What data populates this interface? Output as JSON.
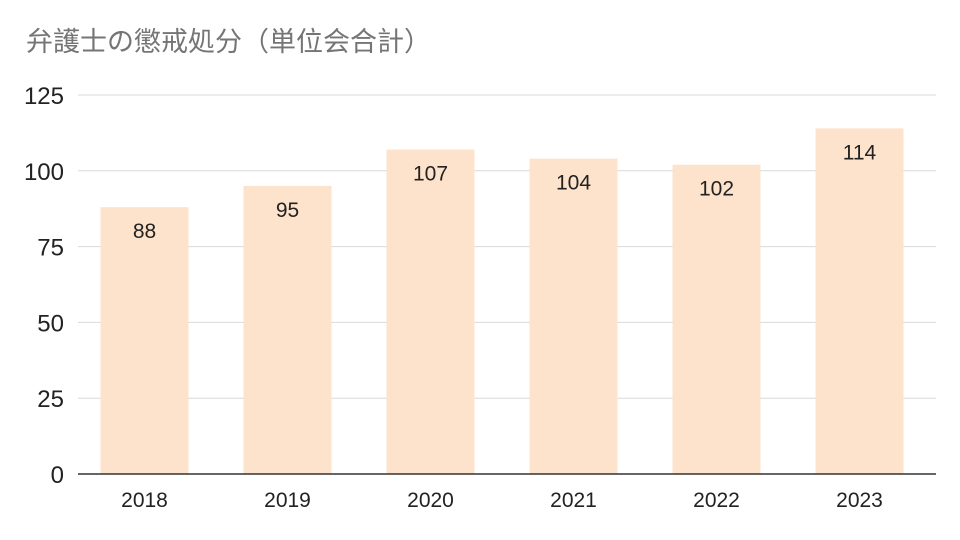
{
  "chart_data": {
    "type": "bar",
    "title": "弁護士の懲戒処分（単位会合計）",
    "categories": [
      "2018",
      "2019",
      "2020",
      "2021",
      "2022",
      "2023"
    ],
    "values": [
      88,
      95,
      107,
      104,
      102,
      114
    ],
    "ylim": [
      0,
      125
    ],
    "yticks": [
      0,
      25,
      50,
      75,
      100,
      125
    ],
    "xlabel": "",
    "ylabel": "",
    "grid": true,
    "bar_color": "#fde3cb",
    "gridline_color": "#d9d9d9",
    "axis_color": "#333333"
  }
}
